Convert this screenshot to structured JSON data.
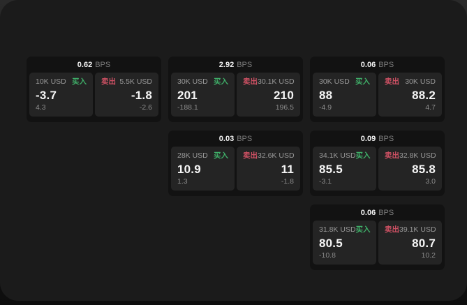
{
  "labels": {
    "bps_unit": "BPS",
    "buy": "买入",
    "sell": "卖出"
  },
  "colors": {
    "buy_accent": "#3fae68",
    "sell_accent": "#cf5164",
    "card_bg": "#121212",
    "pane_bg": "#242424",
    "window_bg": "#1b1b1b"
  },
  "cards": [
    {
      "bps": "0.62",
      "buy": {
        "size": "10K USD",
        "price": "-3.7",
        "change": "4.3"
      },
      "sell": {
        "size": "5.5K USD",
        "price": "-1.8",
        "change": "-2.6"
      }
    },
    {
      "bps": "2.92",
      "buy": {
        "size": "30K USD",
        "price": "201",
        "change": "-188.1"
      },
      "sell": {
        "size": "30.1K USD",
        "price": "210",
        "change": "196.5"
      }
    },
    {
      "bps": "0.06",
      "buy": {
        "size": "30K USD",
        "price": "88",
        "change": "-4.9"
      },
      "sell": {
        "size": "30K USD",
        "price": "88.2",
        "change": "4.7"
      }
    },
    {
      "bps": "0.03",
      "buy": {
        "size": "28K USD",
        "price": "10.9",
        "change": "1.3"
      },
      "sell": {
        "size": "32.6K USD",
        "price": "11",
        "change": "-1.8"
      }
    },
    {
      "bps": "0.09",
      "buy": {
        "size": "34.1K USD",
        "price": "85.5",
        "change": "-3.1"
      },
      "sell": {
        "size": "32.8K USD",
        "price": "85.8",
        "change": "3.0"
      }
    },
    {
      "bps": "0.06",
      "buy": {
        "size": "31.8K USD",
        "price": "80.5",
        "change": "-10.8"
      },
      "sell": {
        "size": "39.1K USD",
        "price": "80.7",
        "change": "10.2"
      }
    }
  ]
}
